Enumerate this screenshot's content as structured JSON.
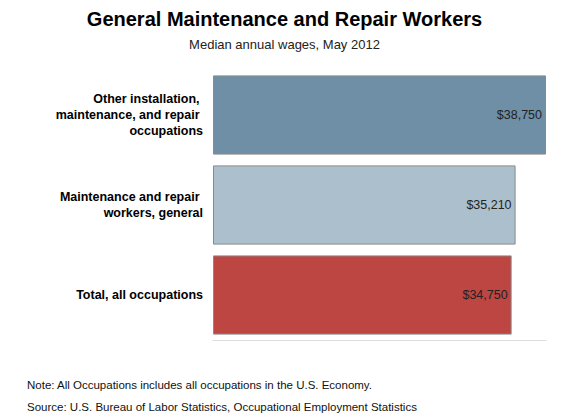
{
  "chart_data": {
    "type": "bar",
    "title": "General Maintenance and Repair Workers",
    "subtitle": "Median annual wages, May 2012",
    "orientation": "horizontal",
    "categories": [
      "Other installation, maintenance, and repair occupations",
      "Maintenance and repair workers, general",
      "Total, all occupations"
    ],
    "values": [
      38750,
      35210,
      34750
    ],
    "value_labels": [
      "$38,750",
      "$35,210",
      "$34,750"
    ],
    "colors": [
      "#6f8fa6",
      "#abc0cc",
      "#bd4643"
    ],
    "xlim": [
      0,
      38750
    ],
    "data_labels": true,
    "tick_labels": "y",
    "grid": false,
    "notes": [
      "Note: All Occupations includes all occupations in the U.S. Economy.",
      "Source: U.S. Bureau of Labor Statistics, Occupational Employment Statistics"
    ]
  }
}
